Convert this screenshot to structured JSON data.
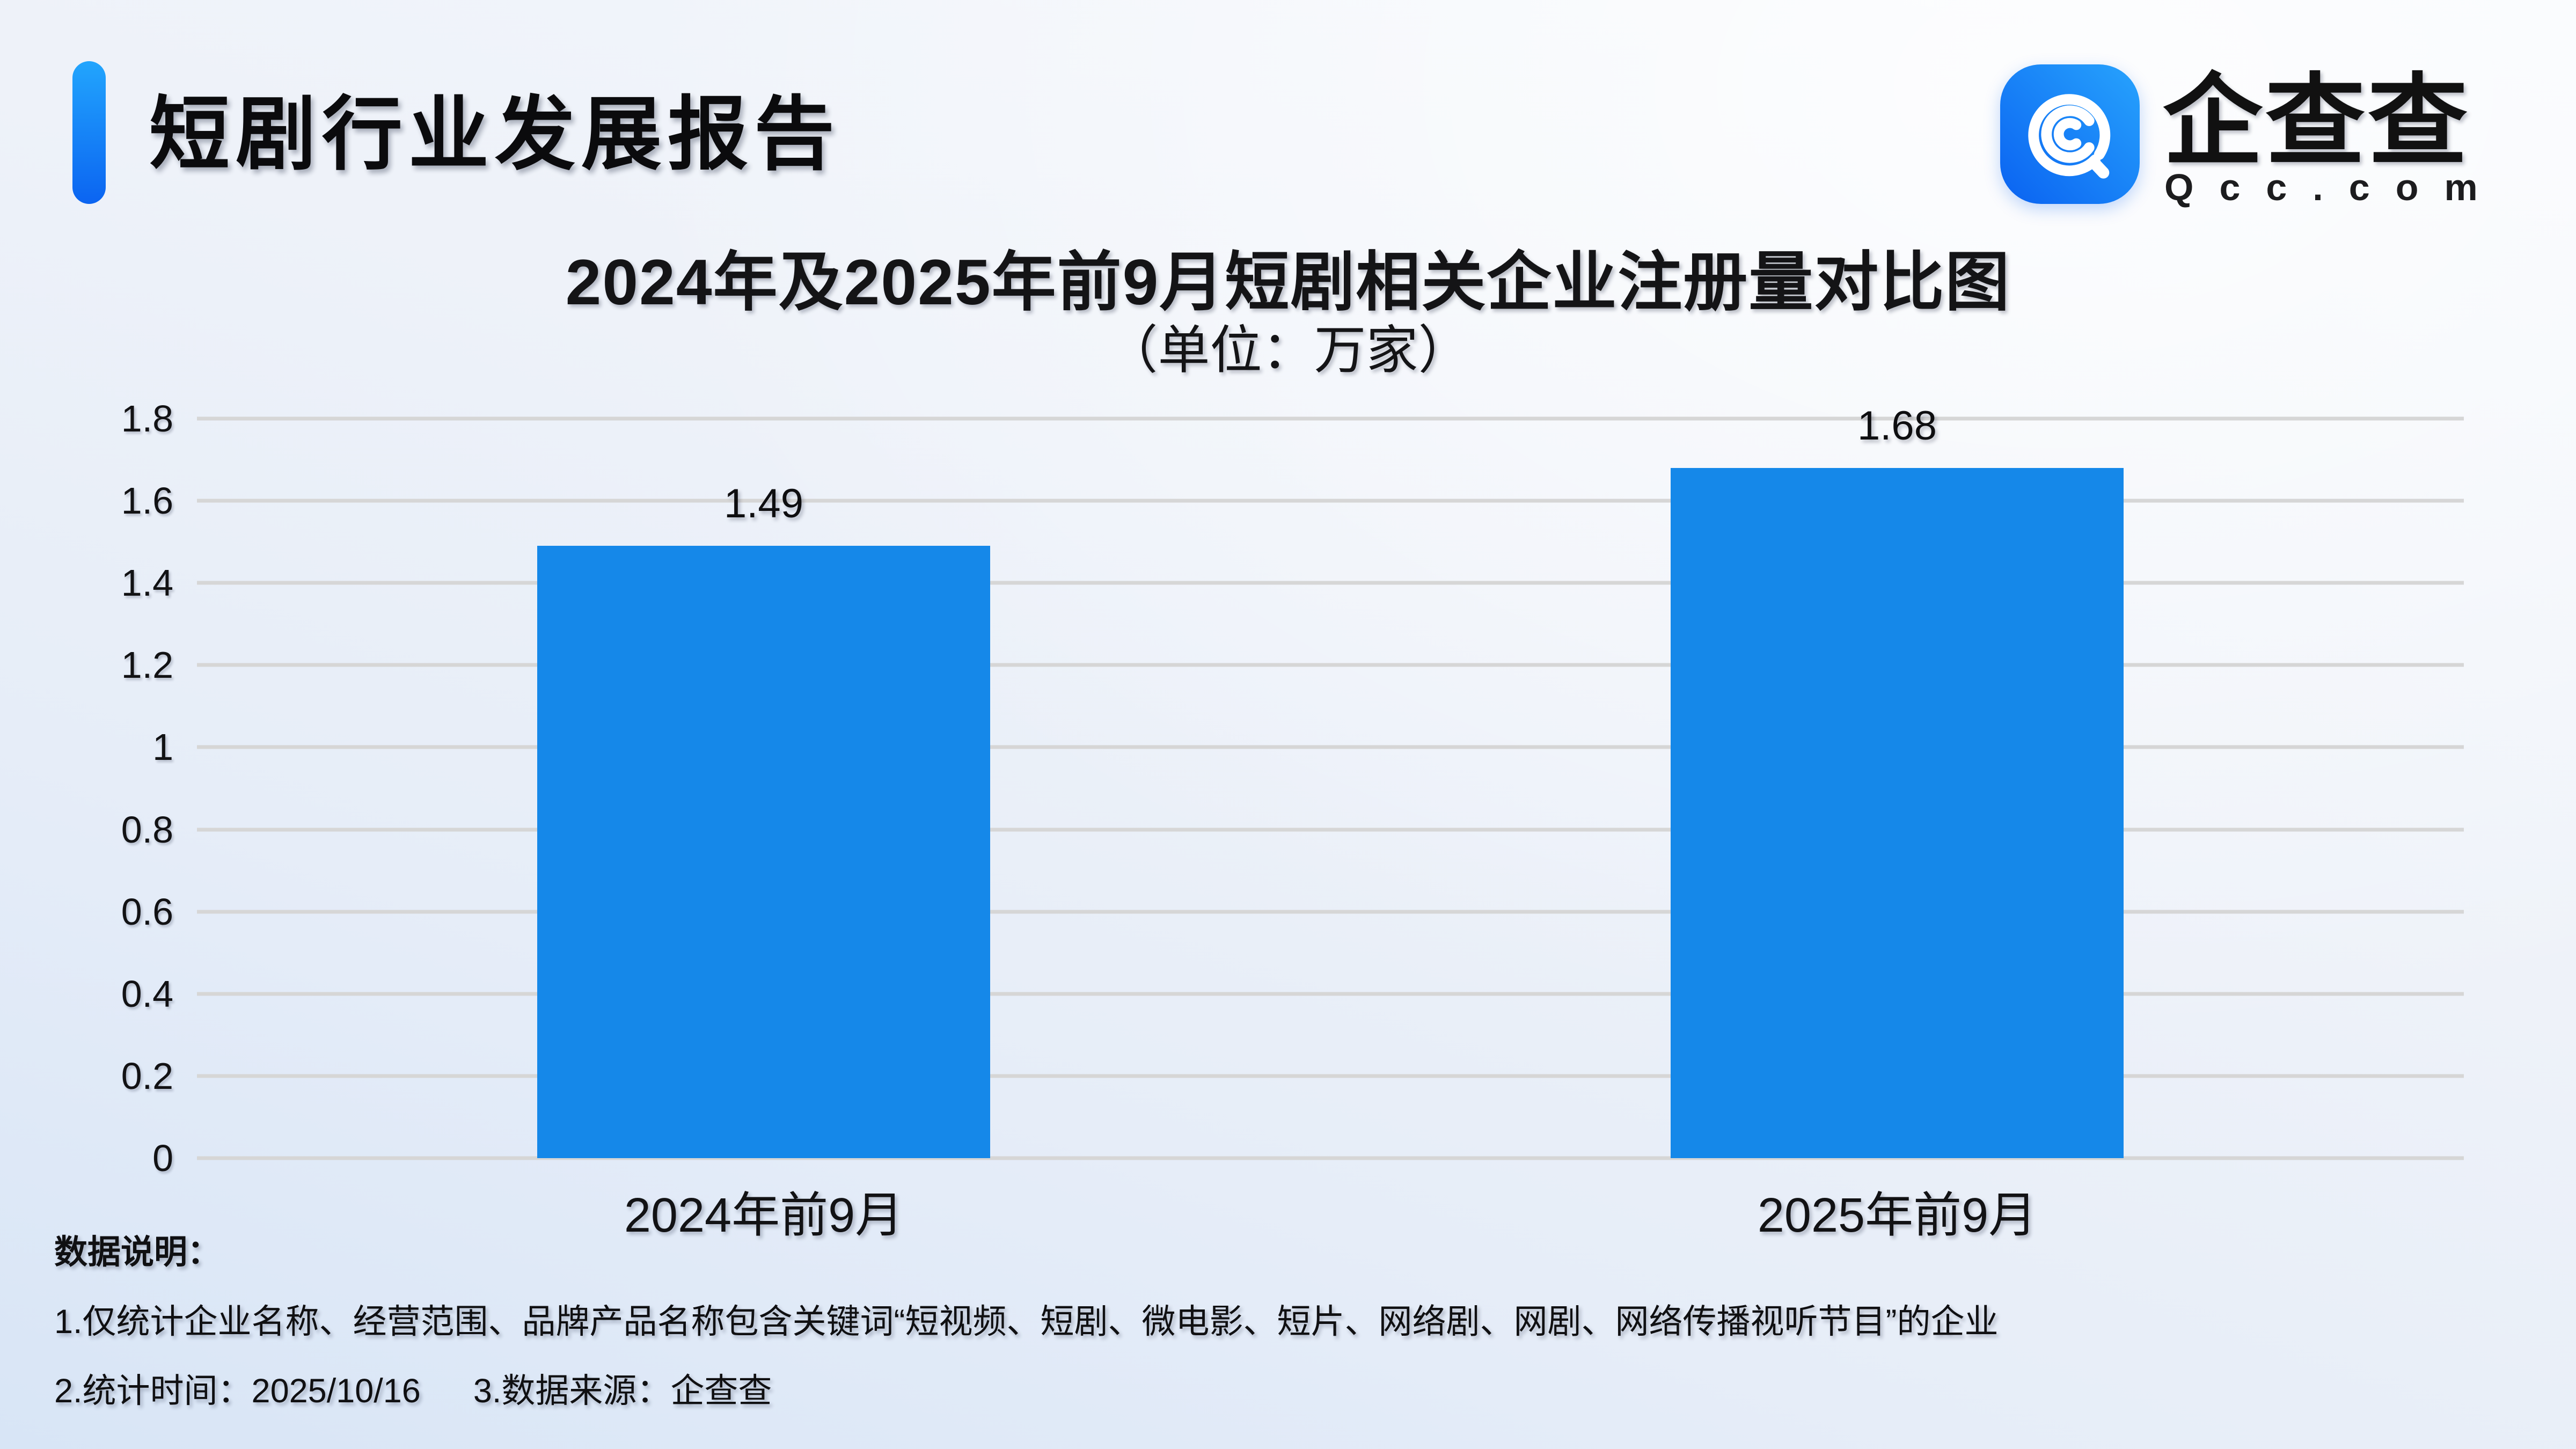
{
  "header": {
    "title": "短剧行业发展报告",
    "brand_cn": "企查查",
    "brand_en": "Qcc.com",
    "accent_gradient": [
      "#22a5fd",
      "#0b64f1"
    ],
    "logo_gradient": [
      "#0a62f1",
      "#27a3fd"
    ]
  },
  "chart_data": {
    "type": "bar",
    "title": "2024年及2025年前9月短剧相关企业注册量对比图",
    "subtitle": "（单位：万家）",
    "unit": "万家",
    "categories": [
      "2024年前9月",
      "2025年前9月"
    ],
    "values": [
      1.49,
      1.68
    ],
    "value_labels": [
      "1.49",
      "1.68"
    ],
    "ylim": [
      0,
      1.8
    ],
    "yticks": [
      0,
      0.2,
      0.4,
      0.6,
      0.8,
      1,
      1.2,
      1.4,
      1.6,
      1.8
    ],
    "ytick_labels": [
      "0",
      "0.2",
      "0.4",
      "0.6",
      "0.8",
      "1",
      "1.2",
      "1.4",
      "1.6",
      "1.8"
    ],
    "grid": true,
    "legend": false,
    "bar_color": "#1588E9",
    "gridline_color": "#D6D6D6"
  },
  "notes": {
    "heading": "数据说明：",
    "line1": "1.仅统计企业名称、经营范围、品牌产品名称包含关键词“短视频、短剧、微电影、短片、网络剧、网剧、网络传播视听节目”的企业",
    "line2_time": "2.统计时间：2025/10/16",
    "line2_source": "3.数据来源：企查查"
  }
}
